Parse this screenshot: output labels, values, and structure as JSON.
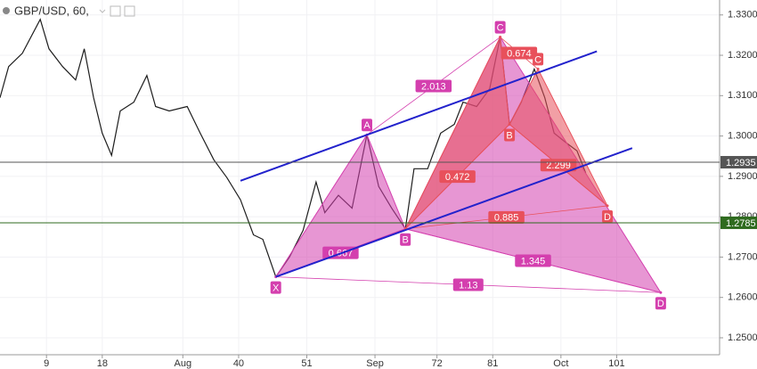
{
  "chart_data": {
    "type": "line",
    "title": "GBP/USD, 60,",
    "x": [
      1.5,
      2.9,
      5.1,
      8.0,
      9.4,
      11.6,
      13.7,
      15.1,
      16.6,
      18.0,
      19.5,
      20.9,
      23.1,
      25.2,
      26.6,
      28.8,
      31.7,
      33.8,
      36.0,
      38.1,
      40.3,
      42.4,
      43.9,
      46.0,
      48.2,
      50.4,
      52.5,
      53.9,
      56.1,
      58.3,
      60.7,
      62.6,
      64.7,
      66.9,
      68.3,
      70.5,
      72.6,
      74.8,
      76.2,
      78.4,
      80.5,
      82.2,
      83.7,
      85.6,
      87.7,
      89.4,
      90.9,
      92.7,
      94.6,
      96.0
    ],
    "values": [
      1.3095,
      1.3172,
      1.3205,
      1.3289,
      1.3216,
      1.3172,
      1.3139,
      1.3216,
      1.3095,
      1.3007,
      1.2952,
      1.3062,
      1.3084,
      1.315,
      1.3073,
      1.3062,
      1.3073,
      1.3007,
      1.2941,
      1.2897,
      1.2842,
      1.2755,
      1.2744,
      1.2651,
      1.27,
      1.2766,
      1.2886,
      1.281,
      1.2853,
      1.2821,
      1.3003,
      1.2875,
      1.2821,
      1.277,
      1.2919,
      1.2919,
      1.3007,
      1.3029,
      1.3084,
      1.3073,
      1.3117,
      1.3245,
      1.3029,
      1.3084,
      1.3166,
      1.3095,
      1.3007,
      1.2985,
      1.2963,
      1.2908
    ],
    "color": "#1e1e1e",
    "xlim": [
      1.5,
      117.6
    ],
    "xticks": [
      9,
      18,
      {
        "value": 31,
        "label": "Aug"
      },
      40,
      51,
      {
        "value": 62,
        "label": "Sep"
      },
      72,
      81,
      {
        "value": 92,
        "label": "Oct"
      },
      101
    ],
    "ylim": [
      1.2458,
      1.3337
    ],
    "yticks": [
      {
        "value": 1.25,
        "label": "1.2500"
      },
      {
        "value": 1.26,
        "label": "1.2600"
      },
      {
        "value": 1.27,
        "label": "1.2700"
      },
      {
        "value": 1.28,
        "label": "1.2800"
      },
      {
        "value": 1.29,
        "label": "1.2900"
      },
      {
        "value": 1.3,
        "label": "1.3000"
      },
      {
        "value": 1.31,
        "label": "1.3100"
      },
      {
        "value": 1.32,
        "label": "1.3200"
      },
      {
        "value": 1.33,
        "label": "1.3300"
      }
    ],
    "grid": true,
    "price_lines": [
      {
        "value": 1.2935,
        "label": "1.2935",
        "color": "#555555"
      },
      {
        "value": 1.2785,
        "label": "1.2785",
        "color": "#2f6b1f"
      }
    ],
    "trend_lines": [
      {
        "color": "#2222cc",
        "x": [
          40.3,
          97.8
        ],
        "y": [
          1.2889,
          1.321
        ]
      },
      {
        "color": "#2222cc",
        "x": [
          46.0,
          103.5
        ],
        "y": [
          1.2651,
          1.297
        ]
      }
    ],
    "patterns": [
      {
        "color": "#d43fae",
        "points": [
          {
            "label": "X",
            "x": 46.0,
            "y": 1.2651
          },
          {
            "label": "A",
            "x": 60.7,
            "y": 1.3003
          },
          {
            "label": "B",
            "x": 66.9,
            "y": 1.277
          },
          {
            "label": "C",
            "x": 82.2,
            "y": 1.3245
          },
          {
            "label": "D",
            "x": 108.1,
            "y": 1.2612
          }
        ],
        "ratios": [
          0.667,
          2.013,
          1.345,
          1.13
        ]
      },
      {
        "color": "#e8505b",
        "points": [
          {
            "label": null,
            "x": 66.9,
            "y": 1.277
          },
          {
            "label": null,
            "x": 82.2,
            "y": 1.3245
          },
          {
            "label": "B",
            "x": 83.7,
            "y": 1.3029
          },
          {
            "label": "C",
            "x": 88.3,
            "y": 1.3166
          },
          {
            "label": "D",
            "x": 99.5,
            "y": 1.2827
          }
        ],
        "ratios": [
          0.472,
          0.674,
          2.299,
          0.885
        ]
      }
    ]
  }
}
